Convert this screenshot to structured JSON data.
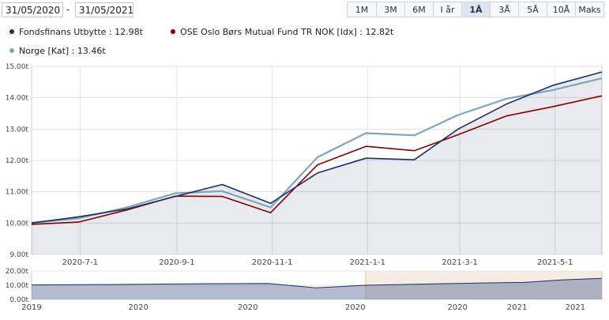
{
  "date_range": {
    "from": "31/05/2020",
    "separator": "-",
    "to": "31/05/2021"
  },
  "range_buttons": [
    {
      "label": "1M",
      "active": false
    },
    {
      "label": "3M",
      "active": false
    },
    {
      "label": "6M",
      "active": false
    },
    {
      "label": "I år",
      "active": false
    },
    {
      "label": "1Å",
      "active": true
    },
    {
      "label": "3Å",
      "active": false
    },
    {
      "label": "5Å",
      "active": false
    },
    {
      "label": "10Å",
      "active": false
    },
    {
      "label": "Maks",
      "active": false
    }
  ],
  "legend": [
    {
      "text": "Fondsfinans Utbytte : 12.98t",
      "color": "#1f2d6b"
    },
    {
      "text": "OSE Oslo Børs Mutual Fund TR NOK [Idx] : 12.82t",
      "color": "#8b0000"
    },
    {
      "text": "Norge [Kat] : 13.46t",
      "color": "#7fa6b7"
    }
  ],
  "chart_data": [
    {
      "type": "line",
      "title": "",
      "y_tick_labels": [
        "15.00t",
        "14.00t",
        "13.00t",
        "12.00t",
        "11.00t",
        "10.00t",
        "9.00t"
      ],
      "x_tick_labels": [
        "2020-7-1",
        "2020-9-1",
        "2020-11-1",
        "2021-1-1",
        "2021-3-1",
        "2021-5-1"
      ],
      "ylim": [
        9000,
        15000
      ],
      "xlim": [
        "2020-05-31",
        "2021-05-31"
      ],
      "grid": true,
      "series": [
        {
          "name": "Fondsfinans Utbytte",
          "color": "#1f2d6b",
          "points": [
            [
              "2020-05-31",
              10000
            ],
            [
              "2020-06-30",
              10200
            ],
            [
              "2020-07-31",
              10450
            ],
            [
              "2020-08-31",
              10850
            ],
            [
              "2020-09-30",
              11230
            ],
            [
              "2020-10-31",
              10630
            ],
            [
              "2020-11-30",
              11600
            ],
            [
              "2020-12-31",
              12070
            ],
            [
              "2021-01-31",
              12020
            ],
            [
              "2021-02-28",
              13000
            ],
            [
              "2021-03-31",
              13800
            ],
            [
              "2021-04-30",
              14400
            ],
            [
              "2021-05-31",
              14820
            ]
          ]
        },
        {
          "name": "OSE Oslo Børs Mutual Fund TR NOK [Idx]",
          "color": "#8b0000",
          "points": [
            [
              "2020-05-31",
              9960
            ],
            [
              "2020-06-30",
              10030
            ],
            [
              "2020-07-31",
              10420
            ],
            [
              "2020-08-31",
              10860
            ],
            [
              "2020-09-30",
              10850
            ],
            [
              "2020-10-31",
              10330
            ],
            [
              "2020-11-30",
              11860
            ],
            [
              "2020-12-31",
              12450
            ],
            [
              "2021-01-31",
              12310
            ],
            [
              "2021-02-28",
              12820
            ],
            [
              "2021-03-31",
              13420
            ],
            [
              "2021-04-30",
              13720
            ],
            [
              "2021-05-31",
              14060
            ]
          ]
        },
        {
          "name": "Norge [Kat]",
          "color": "#7fa6b7",
          "points": [
            [
              "2020-05-31",
              10010
            ],
            [
              "2020-06-30",
              10150
            ],
            [
              "2020-07-31",
              10500
            ],
            [
              "2020-08-31",
              10950
            ],
            [
              "2020-09-30",
              11020
            ],
            [
              "2020-10-31",
              10500
            ],
            [
              "2020-11-30",
              12100
            ],
            [
              "2020-12-31",
              12870
            ],
            [
              "2021-01-31",
              12800
            ],
            [
              "2021-02-28",
              13450
            ],
            [
              "2021-03-31",
              13970
            ],
            [
              "2021-04-30",
              14250
            ],
            [
              "2021-05-31",
              14620
            ]
          ]
        }
      ]
    },
    {
      "type": "area",
      "title": "",
      "y_tick_labels": [
        "20.00t",
        "10.00t",
        "0.00t"
      ],
      "x_tick_labels": [
        "2019",
        "2020",
        "2020",
        "2020",
        "2020",
        "2021",
        "2021"
      ],
      "ylim": [
        0,
        20000
      ],
      "xlim": [
        "2019-01-01",
        "2021-05-31"
      ],
      "selected_range": [
        "2020-05-31",
        "2021-05-31"
      ],
      "series": [
        {
          "name": "Fondsfinans Utbytte",
          "points": [
            [
              "2019-01-01",
              10200
            ],
            [
              "2019-05-01",
              10500
            ],
            [
              "2019-09-01",
              11000
            ],
            [
              "2020-01-01",
              11300
            ],
            [
              "2020-03-15",
              8200
            ],
            [
              "2020-05-31",
              10000
            ],
            [
              "2020-08-31",
              10850
            ],
            [
              "2020-11-30",
              11600
            ],
            [
              "2021-01-31",
              12020
            ],
            [
              "2021-03-31",
              13800
            ],
            [
              "2021-05-31",
              14820
            ]
          ]
        }
      ]
    }
  ]
}
